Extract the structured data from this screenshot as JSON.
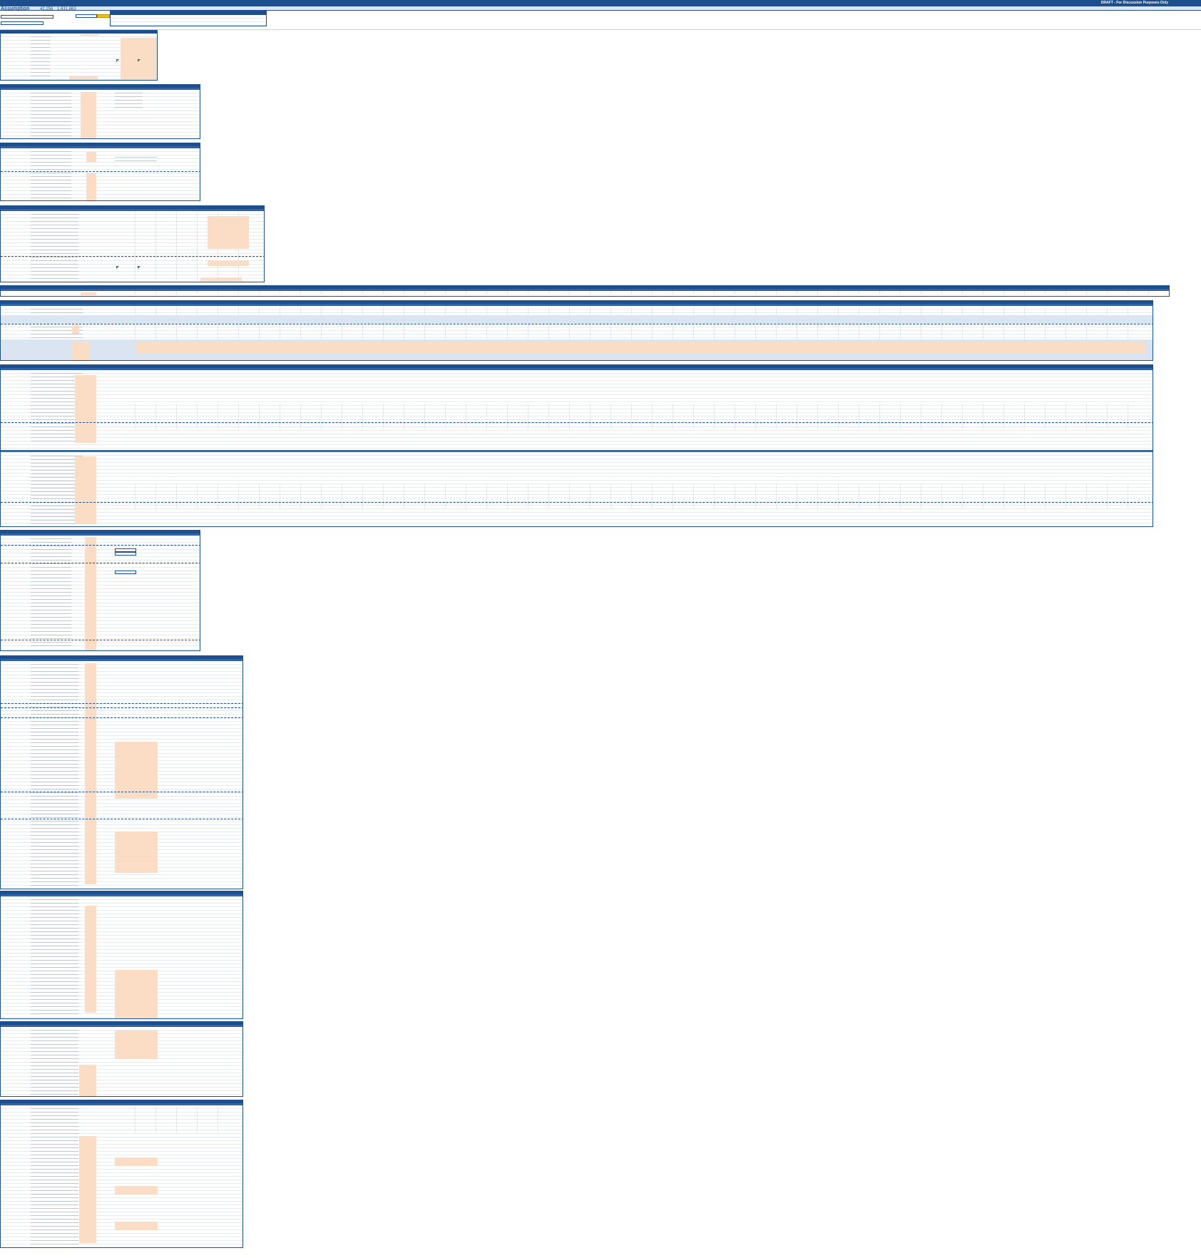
{
  "sheet": {
    "title": "Assumption",
    "kpi_1": "42,258",
    "kpi_2": "1,631,863",
    "confidentiality_note": "DRAFT - For Discussion Purposes Only"
  },
  "icons": {
    "flag": "green-triangle-marker"
  },
  "colors": {
    "header": "#1f4e8c",
    "input_cell": "#fbdcc4",
    "shaded_row": "#dbe5f1",
    "section_divider": "#1f6fb6",
    "flag": "#1e8a2e",
    "control_highlight": "#f4c20d"
  }
}
